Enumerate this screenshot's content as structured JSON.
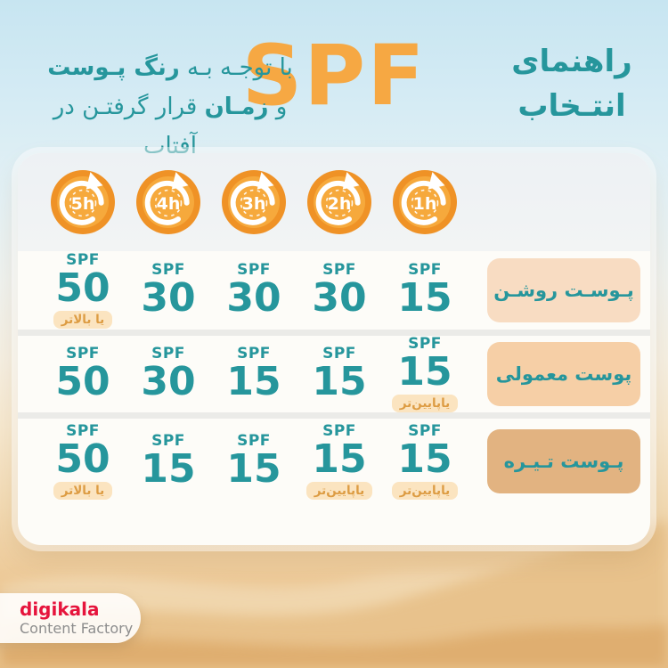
{
  "header": {
    "title_line1": "راهنمای",
    "title_line2": "انتـخاب",
    "spf_word": "SPF",
    "subtitle_line1_normal": "با توجـه بـه ",
    "subtitle_line1_bold": "رنگ پـوست",
    "subtitle_line2_prefix": "و ",
    "subtitle_line2_bold": "زمـان",
    "subtitle_line2_rest": " قرار گرفتـن در آفتاب"
  },
  "colors": {
    "teal": "#26969c",
    "orange_title": "#f6a843",
    "clock_outer": "#ef9226",
    "clock_inner": "#f6a93c",
    "note_badge_bg": "#fbe4c0",
    "note_badge_text": "#dd9c43",
    "brand_red": "#e6143c"
  },
  "table": {
    "time_icons": [
      {
        "label": "5h"
      },
      {
        "label": "4h"
      },
      {
        "label": "3h"
      },
      {
        "label": "2h"
      },
      {
        "label": "1h"
      }
    ],
    "spf_caption": "SPF",
    "note_higher": "یا بالاتر",
    "note_lower": "یاپایین‌تر",
    "rows": [
      {
        "skin": "پـوسـت روشـن",
        "badge_color": "#f8dcc2",
        "cells": [
          {
            "value": "50",
            "note": "یا بالاتر"
          },
          {
            "value": "30",
            "note": ""
          },
          {
            "value": "30",
            "note": ""
          },
          {
            "value": "30",
            "note": ""
          },
          {
            "value": "15",
            "note": ""
          }
        ]
      },
      {
        "skin": "پوست معمولی",
        "badge_color": "#f6cfa6",
        "cells": [
          {
            "value": "50",
            "note": ""
          },
          {
            "value": "30",
            "note": ""
          },
          {
            "value": "15",
            "note": ""
          },
          {
            "value": "15",
            "note": ""
          },
          {
            "value": "15",
            "note": "یاپایین‌تر"
          }
        ]
      },
      {
        "skin": "پـوست تـیـره",
        "badge_color": "#e2b381",
        "cells": [
          {
            "value": "50",
            "note": "یا بالاتر"
          },
          {
            "value": "15",
            "note": ""
          },
          {
            "value": "15",
            "note": ""
          },
          {
            "value": "15",
            "note": "یاپایین‌تر"
          },
          {
            "value": "15",
            "note": "یاپایین‌تر"
          }
        ]
      }
    ]
  },
  "footer": {
    "brand": "digikala",
    "sub": "Content Factory"
  }
}
